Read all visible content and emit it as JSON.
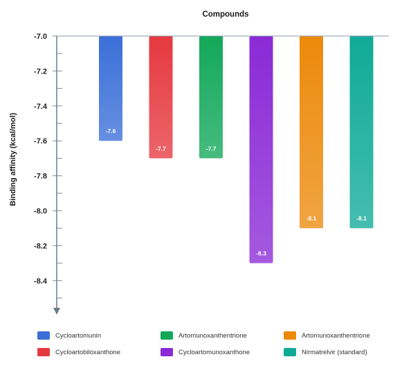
{
  "chart_data": {
    "type": "bar",
    "title": "Compounds",
    "xlabel": "",
    "ylabel": "Binding affinity (kcal/mol)",
    "ylim": [
      -8.5,
      -7.0
    ],
    "y_ticks": [
      "-7.0",
      "-7.2",
      "-7.4",
      "-7.6",
      "-7.8",
      "-8.0",
      "-8.2",
      "-8.4"
    ],
    "x_axis_position": "top",
    "y_axis_direction": "downward",
    "grid": false,
    "legend_position": "bottom",
    "series": [
      {
        "name": "Cycloartomunin",
        "value": -7.6,
        "label": "-7.6",
        "color": "#3b6fd8"
      },
      {
        "name": "Cycloartobiloxanthone",
        "value": -7.7,
        "label": "-7.7",
        "color": "#e53940"
      },
      {
        "name": "Artomunoxanthentrione",
        "value": -7.7,
        "label": "-7.7",
        "color": "#12a85a"
      },
      {
        "name": "Cycloartomunoxanthone",
        "value": -8.3,
        "label": "-8.3",
        "color": "#8a2ad6"
      },
      {
        "name": "Artomunoxanthentrione",
        "value": -8.1,
        "label": "-8.1",
        "color": "#ec8a0c"
      },
      {
        "name": "Nirmatrelvir (standard)",
        "value": -8.1,
        "label": "-8.1",
        "color": "#10aa98"
      }
    ],
    "legend_order": [
      0,
      2,
      4,
      1,
      3,
      5
    ]
  }
}
